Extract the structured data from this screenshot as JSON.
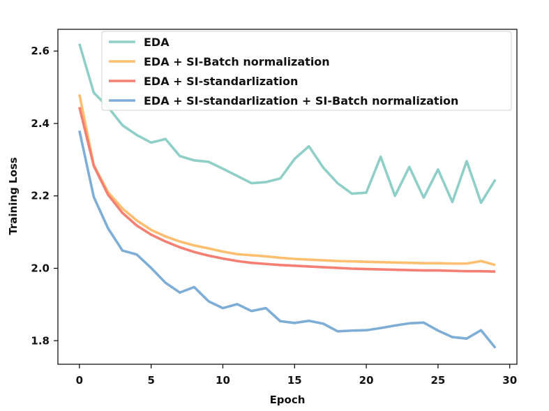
{
  "chart_data": {
    "type": "line",
    "title": "",
    "xlabel": "Epoch",
    "ylabel": "Training Loss",
    "xlim": [
      -1.5,
      30.5
    ],
    "ylim": [
      1.735,
      2.66
    ],
    "xticks": [
      0,
      5,
      10,
      15,
      20,
      25,
      30
    ],
    "yticks": [
      1.8,
      2.0,
      2.2,
      2.4,
      2.6
    ],
    "grid": false,
    "legend_position": "top-right",
    "x": [
      0,
      1,
      2,
      3,
      4,
      5,
      6,
      7,
      8,
      9,
      10,
      11,
      12,
      13,
      14,
      15,
      16,
      17,
      18,
      19,
      20,
      21,
      22,
      23,
      24,
      25,
      26,
      27,
      28,
      29
    ],
    "series": [
      {
        "name": "EDA",
        "color": "#8fcfc8",
        "values": [
          2.62,
          2.485,
          2.445,
          2.395,
          2.368,
          2.347,
          2.357,
          2.31,
          2.298,
          2.294,
          2.275,
          2.255,
          2.235,
          2.238,
          2.248,
          2.302,
          2.337,
          2.278,
          2.235,
          2.206,
          2.209,
          2.308,
          2.2,
          2.28,
          2.195,
          2.273,
          2.183,
          2.296,
          2.181,
          2.245
        ]
      },
      {
        "name": "EDA + SI-Batch normalization",
        "color": "#fdbf6f",
        "values": [
          2.48,
          2.285,
          2.21,
          2.165,
          2.132,
          2.106,
          2.088,
          2.074,
          2.063,
          2.055,
          2.046,
          2.039,
          2.036,
          2.033,
          2.029,
          2.026,
          2.024,
          2.022,
          2.02,
          2.019,
          2.018,
          2.017,
          2.016,
          2.015,
          2.014,
          2.014,
          2.013,
          2.013,
          2.02,
          2.009
        ]
      },
      {
        "name": "EDA + SI-standarlization",
        "color": "#f47f72",
        "values": [
          2.445,
          2.283,
          2.203,
          2.153,
          2.118,
          2.093,
          2.074,
          2.058,
          2.045,
          2.035,
          2.027,
          2.02,
          2.015,
          2.012,
          2.009,
          2.007,
          2.005,
          2.003,
          2.001,
          1.999,
          1.998,
          1.997,
          1.996,
          1.995,
          1.994,
          1.994,
          1.993,
          1.992,
          1.992,
          1.991
        ]
      },
      {
        "name": "EDA + SI-standarlization + SI-Batch normalization",
        "color": "#7eadd6",
        "values": [
          2.38,
          2.197,
          2.11,
          2.049,
          2.038,
          2.001,
          1.96,
          1.933,
          1.948,
          1.909,
          1.89,
          1.901,
          1.882,
          1.89,
          1.854,
          1.849,
          1.855,
          1.847,
          1.826,
          1.828,
          1.829,
          1.835,
          1.842,
          1.848,
          1.85,
          1.828,
          1.81,
          1.806,
          1.829,
          1.78
        ]
      }
    ]
  }
}
